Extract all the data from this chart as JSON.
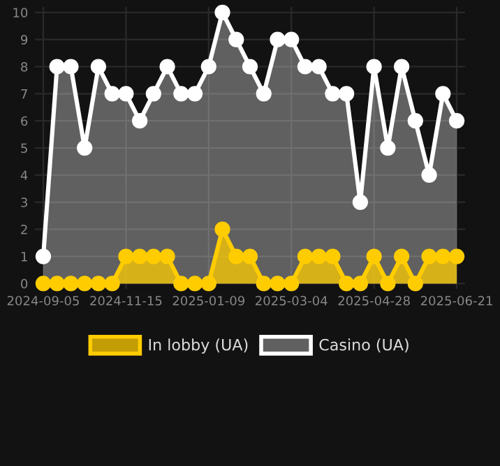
{
  "chart_data": {
    "type": "area",
    "categories": [
      "2024-09-05",
      null,
      null,
      null,
      null,
      null,
      "2024-11-15",
      null,
      null,
      null,
      null,
      null,
      "2025-01-09",
      null,
      null,
      null,
      null,
      null,
      "2025-03-04",
      null,
      null,
      null,
      null,
      null,
      "2025-04-28",
      null,
      null,
      null,
      null,
      null,
      "2025-06-21"
    ],
    "series": [
      {
        "name": "In lobby (UA)",
        "color": "#ffcc00",
        "values": [
          0,
          0,
          0,
          0,
          0,
          0,
          1,
          1,
          1,
          1,
          0,
          0,
          0,
          2,
          1,
          1,
          0,
          0,
          0,
          1,
          1,
          1,
          0,
          0,
          1,
          0,
          1,
          0,
          1,
          1,
          1
        ]
      },
      {
        "name": "Casino (UA)",
        "color": "#ffffff",
        "values": [
          1,
          8,
          8,
          5,
          8,
          7,
          7,
          6,
          7,
          8,
          7,
          7,
          8,
          10,
          9,
          8,
          7,
          9,
          9,
          8,
          8,
          7,
          7,
          3,
          8,
          5,
          8,
          6,
          4,
          7,
          6
        ]
      }
    ],
    "ylim": [
      -0.2,
      10.2
    ],
    "yticks": [
      0,
      1,
      2,
      3,
      4,
      5,
      6,
      7,
      8,
      9,
      10
    ],
    "grid": true,
    "legend": "bottom",
    "marker": "circle",
    "line_style": "solid"
  }
}
